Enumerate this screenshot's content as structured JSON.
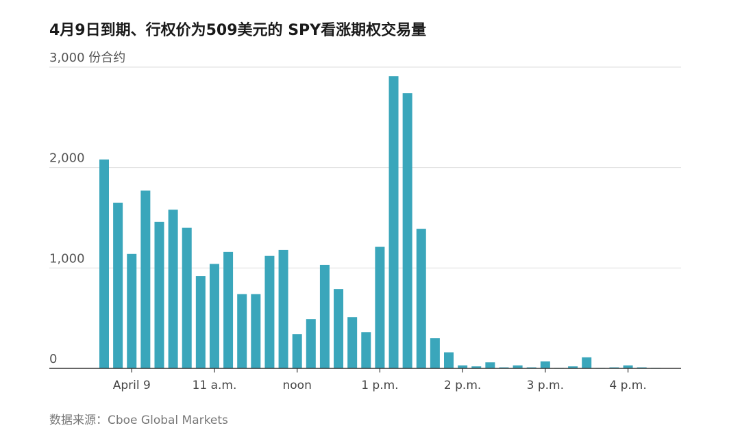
{
  "title": "4月9日到期、行权价为509美元的 SPY看涨期权交易量",
  "source": "数据来源：Cboe Global Markets",
  "colors": {
    "bar": "#3aa6bb",
    "grid": "#dddddd",
    "axis": "#333333"
  },
  "chart_data": {
    "type": "bar",
    "title": "4月9日到期、行权价为509美元的 SPY看涨期权交易量",
    "ylim": [
      0,
      3000
    ],
    "y_ticks": [
      {
        "value": 0,
        "label": "0"
      },
      {
        "value": 1000,
        "label": "1,000"
      },
      {
        "value": 2000,
        "label": "2,000"
      },
      {
        "value": 3000,
        "label": "3,000 份合约"
      }
    ],
    "x_ticks": [
      {
        "label": "April 9",
        "index": 2
      },
      {
        "label": "11 a.m.",
        "index": 8
      },
      {
        "label": "noon",
        "index": 14
      },
      {
        "label": "1 p.m.",
        "index": 20
      },
      {
        "label": "2 p.m.",
        "index": 26
      },
      {
        "label": "3 p.m.",
        "index": 32
      },
      {
        "label": "4 p.m.",
        "index": 38
      }
    ],
    "values": [
      2080,
      1650,
      1140,
      1770,
      1460,
      1580,
      1400,
      920,
      1040,
      1160,
      740,
      740,
      1120,
      1180,
      340,
      490,
      1030,
      790,
      510,
      360,
      1210,
      2910,
      2740,
      1390,
      300,
      160,
      30,
      20,
      60,
      10,
      30,
      10,
      70,
      5,
      20,
      110,
      5,
      10,
      30,
      10,
      5
    ],
    "grid": true,
    "legend": "none"
  }
}
